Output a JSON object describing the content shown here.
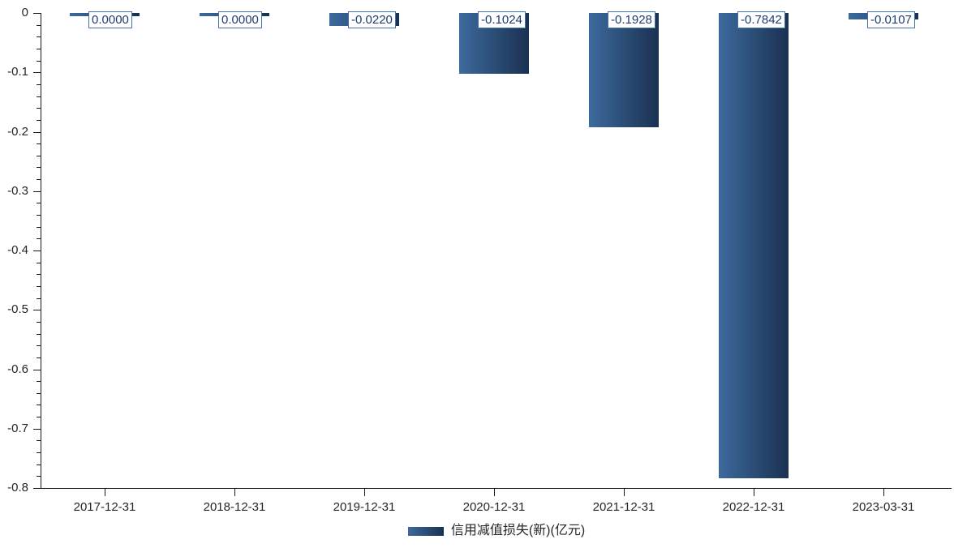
{
  "chart_data": {
    "type": "bar",
    "categories": [
      "2017-12-31",
      "2018-12-31",
      "2019-12-31",
      "2020-12-31",
      "2021-12-31",
      "2022-12-31",
      "2023-03-31"
    ],
    "series": [
      {
        "name": "信用减值损失(新)(亿元)",
        "values": [
          0.0,
          0.0,
          -0.022,
          -0.1024,
          -0.1928,
          -0.7842,
          -0.0107
        ]
      }
    ],
    "value_labels": [
      "0.0000",
      "0.0000",
      "-0.0220",
      "-0.1024",
      "-0.1928",
      "-0.7842",
      "-0.0107"
    ],
    "ylim": [
      -0.8,
      0
    ],
    "ytick_step": 0.1,
    "yminor_step": 0.02,
    "ytick_labels": [
      "0",
      "-0.1",
      "-0.2",
      "-0.3",
      "-0.4",
      "-0.5",
      "-0.6",
      "-0.7",
      "-0.8"
    ],
    "grid": false,
    "legend": {
      "label": "信用减值损失(新)(亿元)",
      "position": "bottom"
    }
  },
  "colors": {
    "bar_gradient_left": "#3d6a9d",
    "bar_gradient_right": "#1a3150",
    "value_box_border": "#4472ac",
    "value_box_text": "#1e3c6e",
    "value_box_bg": "#ffffff",
    "axis": "#1a1a1a",
    "tick_label": "#262626"
  }
}
